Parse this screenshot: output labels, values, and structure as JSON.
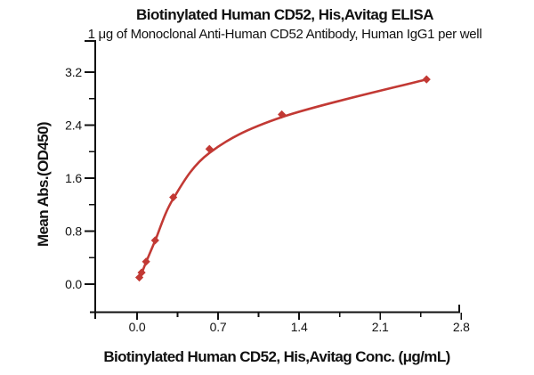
{
  "chart_data": {
    "type": "line",
    "title": "Biotinylated Human CD52, His,Avitag ELISA",
    "subtitle": "1 μg of Monoclonal Anti-Human CD52 Antibody, Human IgG1 per well",
    "xlabel": "Biotinylated Human CD52, His,Avitag Conc. (μg/mL)",
    "ylabel": "Mean Abs.(OD450)",
    "xlim": [
      0.0,
      2.8
    ],
    "ylim": [
      0.0,
      3.2
    ],
    "grid": false,
    "legend": "none",
    "axis_color": "#111111",
    "x_ticks": {
      "major": [
        0.0,
        0.7,
        1.4,
        2.1,
        2.8
      ],
      "minor": [
        0.35,
        1.05,
        1.75,
        2.45
      ],
      "labels": [
        "0.0",
        "0.7",
        "1.4",
        "2.1",
        "2.8"
      ]
    },
    "y_ticks": {
      "major": [
        0.0,
        0.8,
        1.6,
        2.4,
        3.2
      ],
      "minor": [
        0.4,
        1.2,
        2.0,
        2.8
      ],
      "labels": [
        "0.0",
        "0.8",
        "1.6",
        "2.4",
        "3.2"
      ]
    },
    "series": [
      {
        "name": "Biotinylated Human CD52, His,Avitag",
        "color": "#c23934",
        "marker": "diamond",
        "points": [
          [
            0.0195,
            0.1
          ],
          [
            0.039,
            0.175
          ],
          [
            0.078,
            0.34
          ],
          [
            0.156,
            0.66
          ],
          [
            0.3125,
            1.31
          ],
          [
            0.625,
            2.04
          ],
          [
            1.25,
            2.56
          ],
          [
            2.5,
            3.09
          ]
        ],
        "fit_curve": [
          [
            0.0195,
            0.09
          ],
          [
            0.039,
            0.16
          ],
          [
            0.078,
            0.33
          ],
          [
            0.156,
            0.655
          ],
          [
            0.3125,
            1.29
          ],
          [
            0.625,
            1.98
          ],
          [
            1.25,
            2.52
          ],
          [
            2.5,
            3.09
          ]
        ]
      }
    ]
  }
}
